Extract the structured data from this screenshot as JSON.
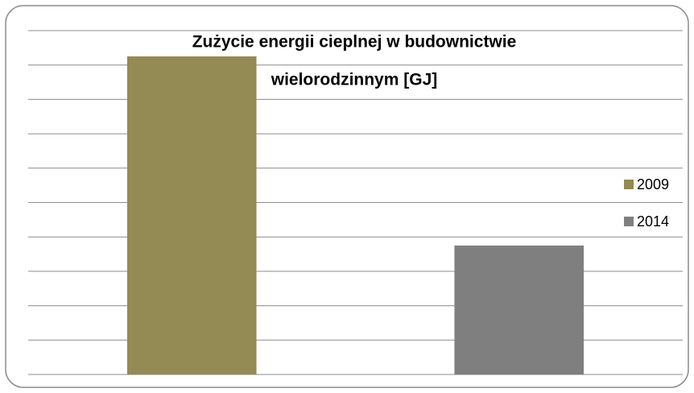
{
  "chart_data": {
    "type": "bar",
    "title": [
      "Zużycie energii cieplnej w budownictwie",
      "wielorodzinnym [GJ]"
    ],
    "categories": [
      null,
      null
    ],
    "series": [
      {
        "name": "2009",
        "color": "#948a54",
        "values": [
          9.25,
          null
        ]
      },
      {
        "name": "2014",
        "color": "#7f7f7f",
        "values": [
          null,
          3.75
        ]
      }
    ],
    "ylim": [
      0,
      10
    ],
    "yticks": [
      0,
      1,
      2,
      3,
      4,
      5,
      6,
      7,
      8,
      9,
      10
    ],
    "grid": true,
    "legend": "right"
  }
}
